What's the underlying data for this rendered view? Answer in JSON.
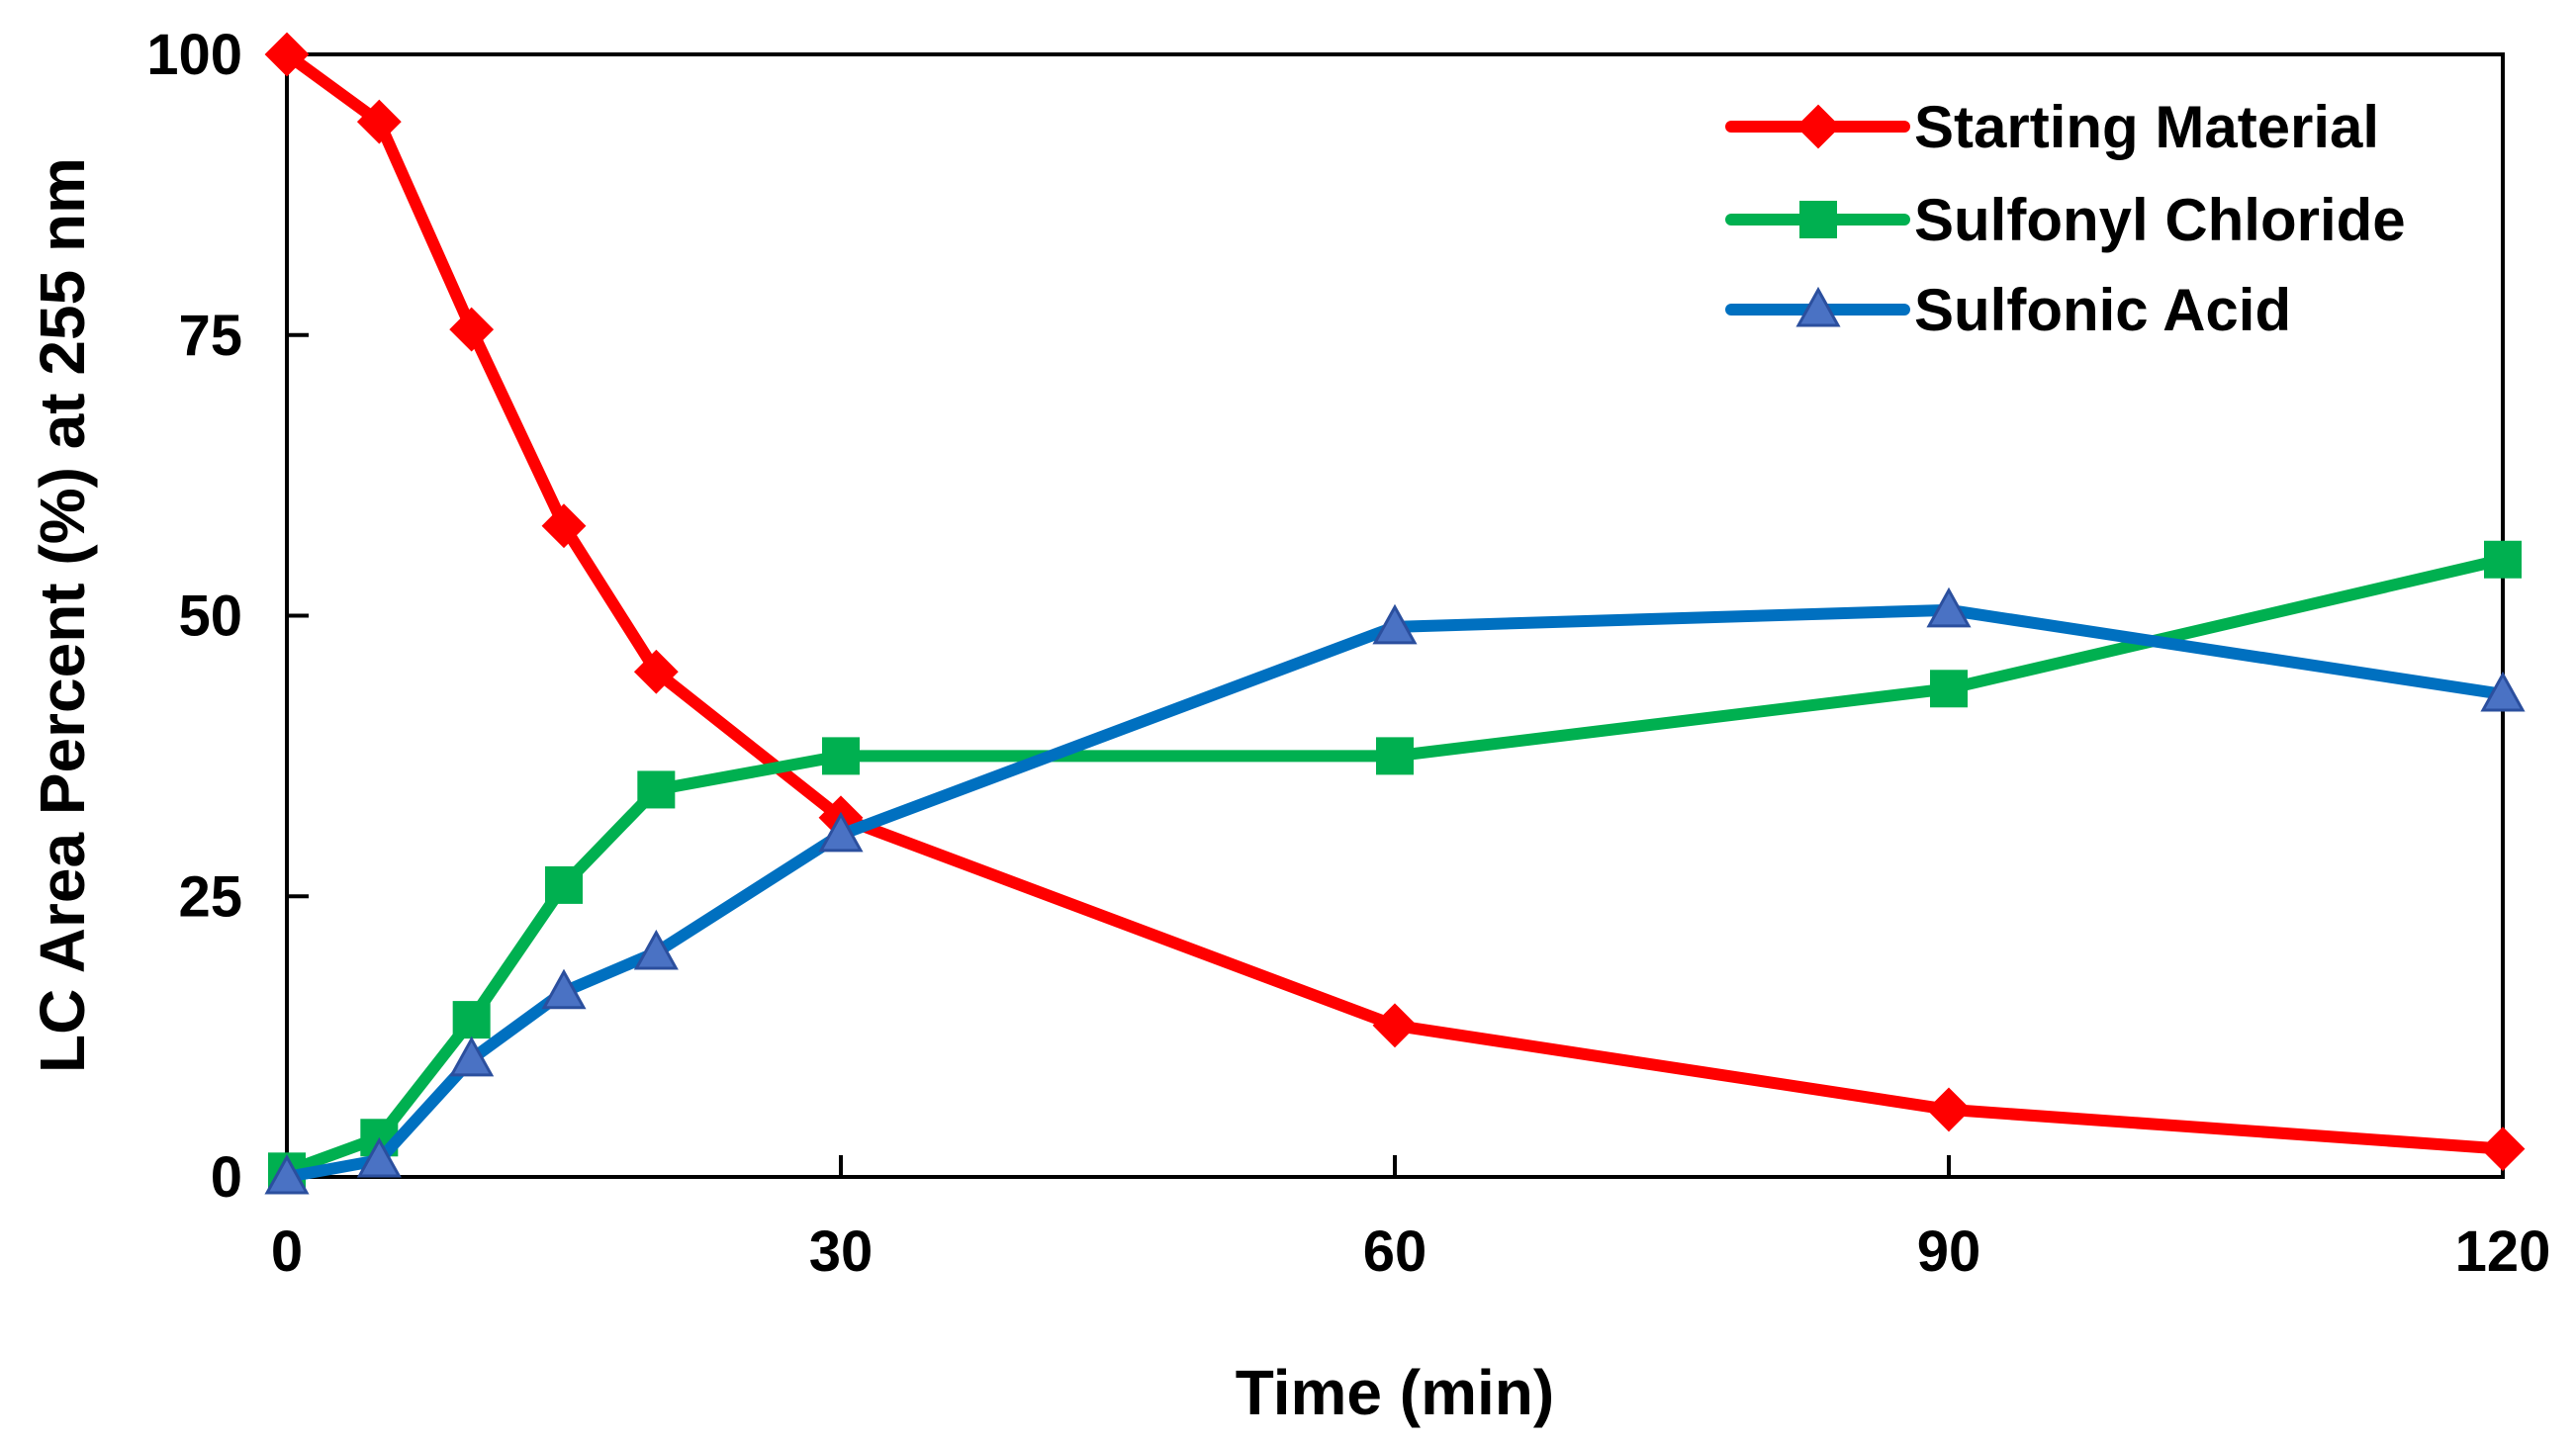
{
  "chart_data": {
    "type": "line",
    "title": "",
    "xlabel": "Time (min)",
    "ylabel": "LC Area Percent (%) at 255 nm",
    "xlim": [
      0,
      120
    ],
    "ylim": [
      0,
      100
    ],
    "xticks": [
      0,
      30,
      60,
      90,
      120
    ],
    "yticks": [
      0,
      25,
      50,
      75,
      100
    ],
    "grid": false,
    "legend_position": "top-right",
    "x": [
      0,
      5,
      10,
      15,
      20,
      30,
      60,
      90,
      120
    ],
    "series": [
      {
        "name": "Starting Material",
        "color": "#ff0000",
        "marker": "diamond",
        "values": [
          100,
          94,
          75.5,
          58,
          45,
          32,
          13.5,
          6,
          2.5
        ]
      },
      {
        "name": "Sulfonyl Chloride",
        "color": "#00b050",
        "marker": "square",
        "values": [
          0.5,
          3.5,
          14,
          26,
          34.5,
          37.5,
          37.5,
          43.5,
          55
        ]
      },
      {
        "name": "Sulfonic Acid",
        "color": "#0070c0",
        "marker": "triangle",
        "values": [
          0,
          1.5,
          10.5,
          16.5,
          20,
          30.5,
          49,
          50.5,
          43
        ]
      }
    ]
  }
}
